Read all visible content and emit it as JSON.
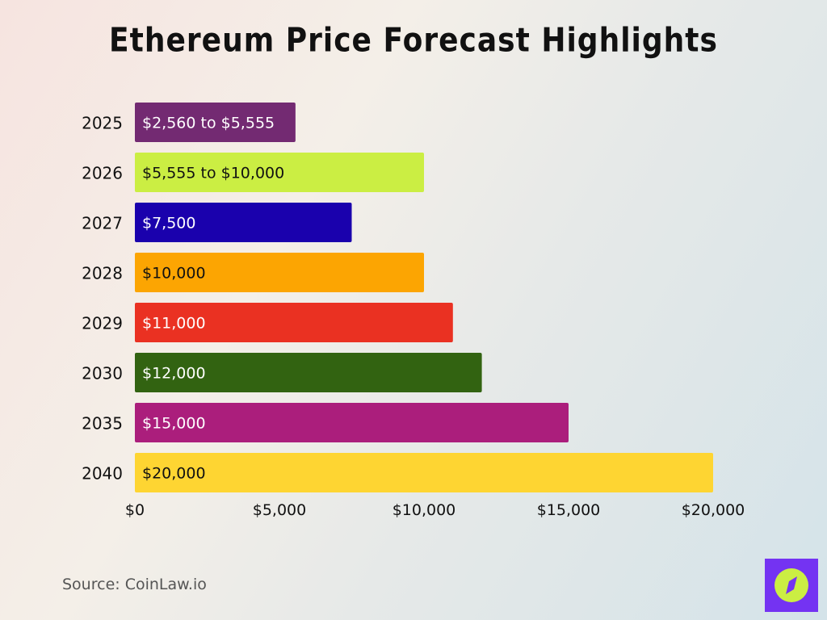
{
  "title": "Ethereum Price Forecast Highlights",
  "source": "Source: CoinLaw.io",
  "logo_icon": "compass-icon",
  "chart_data": {
    "type": "bar",
    "orientation": "horizontal",
    "title": "Ethereum Price Forecast Highlights",
    "categories": [
      "2025",
      "2026",
      "2027",
      "2028",
      "2029",
      "2030",
      "2035",
      "2040"
    ],
    "values": [
      5555,
      10000,
      7500,
      10000,
      11000,
      12000,
      15000,
      20000
    ],
    "range_low": [
      2560,
      5555,
      null,
      null,
      null,
      null,
      null,
      null
    ],
    "labels": [
      "$2,560 to $5,555",
      "$5,555 to $10,000",
      "$7,500",
      "$10,000",
      "$11,000",
      "$12,000",
      "$15,000",
      "$20,000"
    ],
    "colors": [
      "#732a72",
      "#cbee43",
      "#1a01ad",
      "#fca502",
      "#ea3122",
      "#326311",
      "#ab1e7c",
      "#fed532"
    ],
    "label_colors": [
      "#ffffff",
      "#111111",
      "#ffffff",
      "#111111",
      "#ffffff",
      "#ffffff",
      "#ffffff",
      "#111111"
    ],
    "xticks": [
      0,
      5000,
      10000,
      15000,
      20000
    ],
    "xtick_labels": [
      "$0",
      "$5,000",
      "$10,000",
      "$15,000",
      "$20,000"
    ],
    "xlim": [
      0,
      20000
    ],
    "grid": false,
    "legend": "none"
  }
}
